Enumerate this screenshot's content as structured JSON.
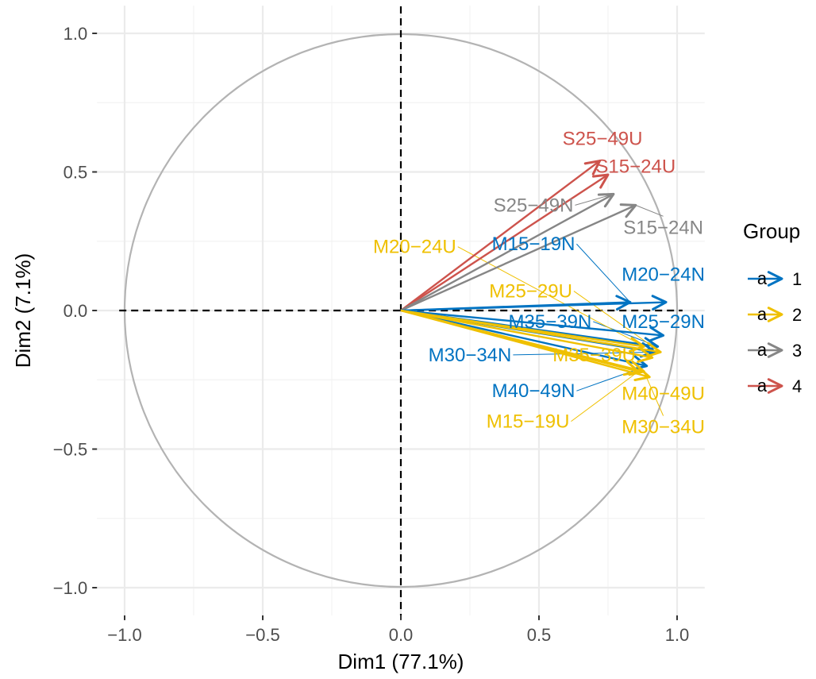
{
  "chart_data": {
    "type": "scatter",
    "subtype": "pca-variable-correlation-circle",
    "title": "",
    "xlabel": "Dim1 (77.1%)",
    "ylabel": "Dim2 (7.1%)",
    "xlim": [
      -1.1,
      1.1
    ],
    "ylim": [
      -1.1,
      1.1
    ],
    "x_ticks": [
      "−1.0",
      "−0.5",
      "0.0",
      "0.5",
      "1.0"
    ],
    "y_ticks": [
      "−1.0",
      "−0.5",
      "0.0",
      "0.5",
      "1.0"
    ],
    "x_tick_values": [
      -1.0,
      -0.5,
      0.0,
      0.5,
      1.0
    ],
    "y_tick_values": [
      -1.0,
      -0.5,
      0.0,
      0.5,
      1.0
    ],
    "grid": true,
    "unit_circle": true,
    "reference_lines": "dashed at x=0 and y=0",
    "legend": {
      "title": "Group",
      "placement": "right",
      "entries": [
        {
          "label": "1",
          "color": "#0073C2"
        },
        {
          "label": "2",
          "color": "#EFC000"
        },
        {
          "label": "3",
          "color": "#868686"
        },
        {
          "label": "4",
          "color": "#CD534C"
        }
      ]
    },
    "variables": [
      {
        "name": "S25−49U",
        "group": "4",
        "x": 0.72,
        "y": 0.54,
        "label_x": 0.73,
        "label_y": 0.62
      },
      {
        "name": "S15−24U",
        "group": "4",
        "x": 0.75,
        "y": 0.49,
        "label_x": 0.85,
        "label_y": 0.52
      },
      {
        "name": "S25−49N",
        "group": "3",
        "x": 0.77,
        "y": 0.42,
        "label_x": 0.48,
        "label_y": 0.38
      },
      {
        "name": "S15−24N",
        "group": "3",
        "x": 0.85,
        "y": 0.38,
        "label_x": 0.95,
        "label_y": 0.3
      },
      {
        "name": "M15−19N",
        "group": "1",
        "x": 0.83,
        "y": 0.03,
        "label_x": 0.48,
        "label_y": 0.24
      },
      {
        "name": "M20−24N",
        "group": "1",
        "x": 0.96,
        "y": 0.03,
        "label_x": 0.95,
        "label_y": 0.13
      },
      {
        "name": "M25−29N",
        "group": "1",
        "x": 0.95,
        "y": -0.09,
        "label_x": 0.95,
        "label_y": -0.04
      },
      {
        "name": "M35−39N",
        "group": "1",
        "x": 0.93,
        "y": -0.13,
        "label_x": 0.54,
        "label_y": -0.04
      },
      {
        "name": "M30−34N",
        "group": "1",
        "x": 0.92,
        "y": -0.15,
        "label_x": 0.25,
        "label_y": -0.16
      },
      {
        "name": "M40−49N",
        "group": "1",
        "x": 0.89,
        "y": -0.2,
        "label_x": 0.48,
        "label_y": -0.29
      },
      {
        "name": "M20−24U",
        "group": "2",
        "x": 0.88,
        "y": -0.13,
        "label_x": 0.05,
        "label_y": 0.23
      },
      {
        "name": "M25−29U",
        "group": "2",
        "x": 0.94,
        "y": -0.15,
        "label_x": 0.47,
        "label_y": 0.07
      },
      {
        "name": "M35−39U",
        "group": "2",
        "x": 0.91,
        "y": -0.17,
        "label_x": 0.7,
        "label_y": -0.16
      },
      {
        "name": "M40−49U",
        "group": "2",
        "x": 0.9,
        "y": -0.24,
        "label_x": 0.95,
        "label_y": -0.3
      },
      {
        "name": "M30−34U",
        "group": "2",
        "x": 0.88,
        "y": -0.22,
        "label_x": 0.95,
        "label_y": -0.42
      },
      {
        "name": "M15−19U",
        "group": "2",
        "x": 0.86,
        "y": -0.22,
        "label_x": 0.46,
        "label_y": -0.4
      }
    ]
  }
}
